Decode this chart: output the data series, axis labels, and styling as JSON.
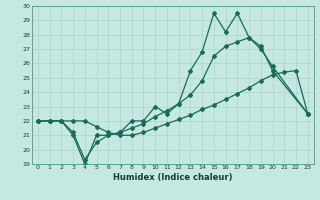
{
  "xlabel": "Humidex (Indice chaleur)",
  "bg_color": "#c5e8e0",
  "grid_color": "#a8d4cc",
  "line_color": "#1a6a5a",
  "xlim_min": -0.5,
  "xlim_max": 23.5,
  "ylim_min": 19,
  "ylim_max": 30,
  "xticks": [
    0,
    1,
    2,
    3,
    4,
    5,
    6,
    7,
    8,
    9,
    10,
    11,
    12,
    13,
    14,
    15,
    16,
    17,
    18,
    19,
    20,
    21,
    22,
    23
  ],
  "yticks": [
    19,
    20,
    21,
    22,
    23,
    24,
    25,
    26,
    27,
    28,
    29,
    30
  ],
  "line1_x": [
    0,
    1,
    2,
    3,
    4,
    5,
    6,
    7,
    8,
    9,
    10,
    11,
    12,
    13,
    14,
    15,
    16,
    17,
    18,
    19,
    20,
    23
  ],
  "line1_y": [
    22,
    22,
    22,
    21,
    19,
    21,
    21,
    21.2,
    22,
    22,
    23,
    22.5,
    23.2,
    25.5,
    26.8,
    29.5,
    28.2,
    29.5,
    27.8,
    27,
    25.8,
    22.5
  ],
  "line2_x": [
    0,
    1,
    2,
    3,
    4,
    5,
    6,
    7,
    8,
    9,
    10,
    11,
    12,
    13,
    14,
    15,
    16,
    17,
    18,
    19,
    20,
    23
  ],
  "line2_y": [
    22,
    22,
    22,
    21.2,
    19.3,
    20.5,
    21,
    21.2,
    21.5,
    21.8,
    22.3,
    22.7,
    23.2,
    23.8,
    24.8,
    26.5,
    27.2,
    27.5,
    27.8,
    27.2,
    25.5,
    22.5
  ],
  "line3_x": [
    0,
    1,
    2,
    3,
    4,
    5,
    6,
    7,
    8,
    9,
    10,
    11,
    12,
    13,
    14,
    15,
    16,
    17,
    18,
    19,
    20,
    21,
    22,
    23
  ],
  "line3_y": [
    22,
    22,
    22,
    22,
    22,
    21.6,
    21.2,
    21.0,
    21.0,
    21.2,
    21.5,
    21.8,
    22.1,
    22.4,
    22.8,
    23.1,
    23.5,
    23.9,
    24.3,
    24.8,
    25.2,
    25.4,
    25.5,
    22.5
  ]
}
